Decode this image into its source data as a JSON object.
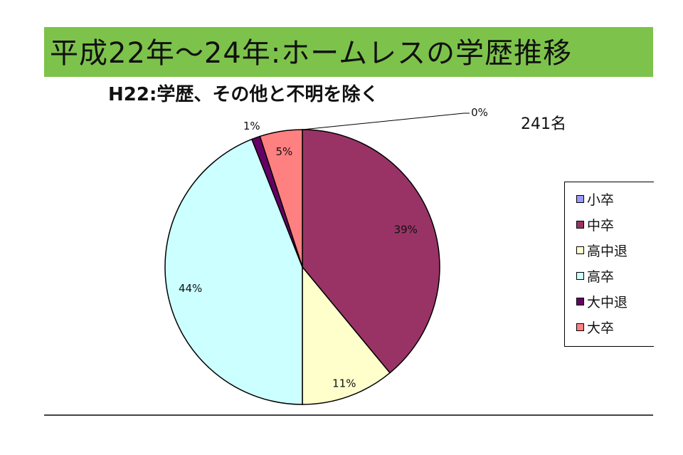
{
  "header": {
    "title": "平成22年〜24年:ホームレスの学歴推移",
    "band_color": "#7dc34b"
  },
  "count_label": "241名",
  "chart_data": {
    "type": "pie",
    "title": "H22:学歴、その他と不明を除く",
    "start_angle_deg": 0,
    "direction": "clockwise",
    "legend_position": "right",
    "slices": [
      {
        "label": "小卒",
        "value": 0,
        "display": "0%",
        "color": "#9999ff"
      },
      {
        "label": "中卒",
        "value": 39,
        "display": "39%",
        "color": "#993366"
      },
      {
        "label": "高中退",
        "value": 11,
        "display": "11%",
        "color": "#ffffcc"
      },
      {
        "label": "高卒",
        "value": 44,
        "display": "44%",
        "color": "#ccffff"
      },
      {
        "label": "大中退",
        "value": 1,
        "display": "1%",
        "color": "#660066"
      },
      {
        "label": "大卒",
        "value": 5,
        "display": "5%",
        "color": "#ff8080"
      }
    ]
  }
}
